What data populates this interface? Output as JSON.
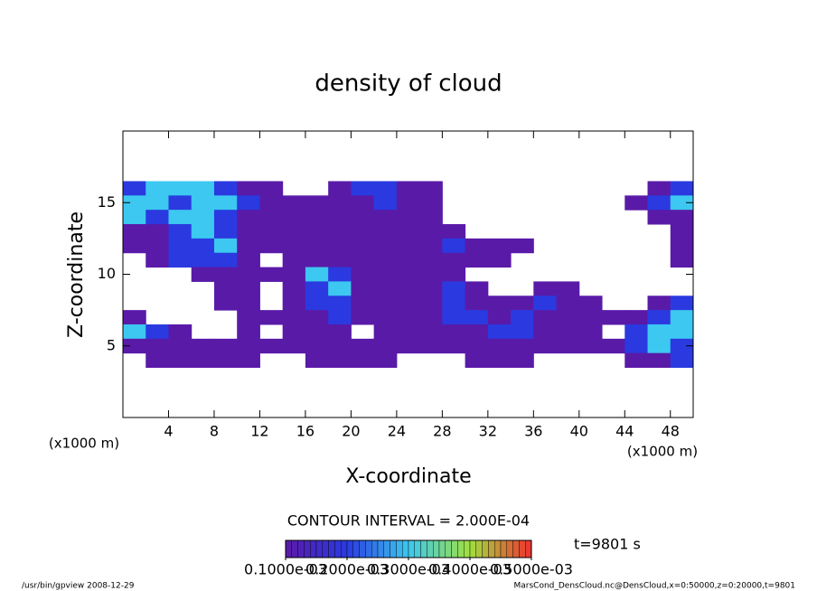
{
  "chart_data": {
    "type": "heatmap",
    "title": "density of cloud",
    "xlabel": "X-coordinate",
    "ylabel": "Z-coordinate",
    "xunit": "(x1000 m)",
    "xunit2": "(x1000 m)",
    "contour_note": "CONTOUR INTERVAL = 2.000E-04",
    "time_label": "t=9801 s",
    "footer_left": "/usr/bin/gpview  2008-12-29",
    "footer_right": "MarsCond_DensCloud.nc@DensCloud,x=0:50000,z=0:20000,t=9801",
    "xlim": [
      0,
      50
    ],
    "ylim": [
      0,
      20
    ],
    "xticks": [
      4,
      8,
      12,
      16,
      20,
      24,
      28,
      32,
      36,
      40,
      44,
      48
    ],
    "yticks": [
      5,
      10,
      15
    ],
    "x": [
      1,
      3,
      5,
      7,
      9,
      11,
      13,
      15,
      17,
      19,
      21,
      23,
      25,
      27,
      29,
      31,
      33,
      35,
      37,
      39,
      41,
      43,
      45,
      47,
      49
    ],
    "y": [
      16,
      15,
      14,
      13,
      12,
      11,
      10,
      9,
      8,
      7,
      6,
      5,
      4
    ],
    "values": [
      [
        0.0002,
        0.0003,
        0.0003,
        0.0003,
        0.0002,
        0.0001,
        0.0001,
        null,
        null,
        0.0001,
        0.0002,
        0.0002,
        0.0001,
        0.0001,
        null,
        null,
        null,
        null,
        null,
        null,
        null,
        null,
        null,
        0.0001,
        0.0002
      ],
      [
        0.0003,
        0.0003,
        0.0002,
        0.0003,
        0.0003,
        0.0002,
        0.0001,
        0.0001,
        0.0001,
        0.0001,
        0.0001,
        0.0002,
        0.0001,
        0.0001,
        null,
        null,
        null,
        null,
        null,
        null,
        null,
        null,
        0.0001,
        0.0002,
        0.0003
      ],
      [
        0.0003,
        0.0002,
        0.0003,
        0.0003,
        0.0002,
        0.0001,
        0.0001,
        0.0001,
        0.0001,
        0.0001,
        0.0001,
        0.0001,
        0.0001,
        0.0001,
        null,
        null,
        null,
        null,
        null,
        null,
        null,
        null,
        null,
        0.0001,
        0.0001
      ],
      [
        0.0001,
        0.0001,
        0.0002,
        0.0003,
        0.0002,
        0.0001,
        0.0001,
        0.0001,
        0.0001,
        0.0001,
        0.0001,
        0.0001,
        0.0001,
        0.0001,
        0.0001,
        null,
        null,
        null,
        null,
        null,
        null,
        null,
        null,
        null,
        0.0001
      ],
      [
        0.0001,
        0.0001,
        0.0002,
        0.0002,
        0.0003,
        0.0001,
        0.0001,
        0.0001,
        0.0001,
        0.0001,
        0.0001,
        0.0001,
        0.0001,
        0.0001,
        0.0002,
        0.0001,
        0.0001,
        0.0001,
        null,
        null,
        null,
        null,
        null,
        null,
        0.0001
      ],
      [
        null,
        0.0001,
        0.0002,
        0.0002,
        0.0002,
        0.0001,
        null,
        0.0001,
        0.0001,
        0.0001,
        0.0001,
        0.0001,
        0.0001,
        0.0001,
        0.0001,
        0.0001,
        0.0001,
        null,
        null,
        null,
        null,
        null,
        null,
        null,
        0.0001
      ],
      [
        null,
        null,
        null,
        0.0001,
        0.0001,
        0.0001,
        0.0001,
        0.0001,
        0.0003,
        0.0002,
        0.0001,
        0.0001,
        0.0001,
        0.0001,
        0.0001,
        null,
        null,
        null,
        null,
        null,
        null,
        null,
        null,
        null,
        null
      ],
      [
        null,
        null,
        null,
        null,
        0.0001,
        0.0001,
        null,
        0.0001,
        0.0002,
        0.0003,
        0.0001,
        0.0001,
        0.0001,
        0.0001,
        0.0002,
        0.0001,
        null,
        null,
        0.0001,
        0.0001,
        null,
        null,
        null,
        null,
        null
      ],
      [
        null,
        null,
        null,
        null,
        0.0001,
        0.0001,
        null,
        0.0001,
        0.0002,
        0.0002,
        0.0001,
        0.0001,
        0.0001,
        0.0001,
        0.0002,
        0.0001,
        0.0001,
        0.0001,
        0.0002,
        0.0001,
        0.0001,
        null,
        null,
        0.0001,
        0.0002
      ],
      [
        0.0001,
        null,
        null,
        null,
        null,
        0.0001,
        0.0001,
        0.0001,
        0.0001,
        0.0002,
        0.0001,
        0.0001,
        0.0001,
        0.0001,
        0.0002,
        0.0002,
        0.0001,
        0.0002,
        0.0001,
        0.0001,
        0.0001,
        0.0001,
        0.0001,
        0.0002,
        0.0003
      ],
      [
        0.0003,
        0.0002,
        0.0001,
        null,
        null,
        0.0001,
        null,
        0.0001,
        0.0001,
        0.0001,
        null,
        0.0001,
        0.0001,
        0.0001,
        0.0001,
        0.0001,
        0.0002,
        0.0002,
        0.0001,
        0.0001,
        0.0001,
        null,
        0.0002,
        0.0003,
        0.0003
      ],
      [
        0.0001,
        0.0001,
        0.0001,
        0.0001,
        0.0001,
        0.0001,
        0.0001,
        0.0001,
        0.0001,
        0.0001,
        0.0001,
        0.0001,
        0.0001,
        0.0001,
        0.0001,
        0.0001,
        0.0001,
        0.0001,
        0.0001,
        0.0001,
        0.0001,
        0.0001,
        0.0002,
        0.0003,
        0.0002
      ],
      [
        null,
        0.0001,
        0.0001,
        0.0001,
        0.0001,
        0.0001,
        null,
        null,
        0.0001,
        0.0001,
        0.0001,
        0.0001,
        null,
        null,
        null,
        0.0001,
        0.0001,
        0.0001,
        null,
        null,
        null,
        null,
        0.0001,
        0.0001,
        0.0002
      ]
    ],
    "clim": [
      0.0001,
      0.0005
    ],
    "cticks": [
      {
        "value": 0.0001,
        "label": "0.1000e-03"
      },
      {
        "value": 0.0002,
        "label": "0.2000e-03"
      },
      {
        "value": 0.0003,
        "label": "0.3000e-03"
      },
      {
        "value": 0.0004,
        "label": "0.4000e-03"
      },
      {
        "value": 0.0005,
        "label": "0.5000e-03"
      }
    ],
    "colormap": [
      "#5a1aa8",
      "#2a3ae0",
      "#3cc8f0",
      "#a0e040",
      "#f03030"
    ]
  }
}
